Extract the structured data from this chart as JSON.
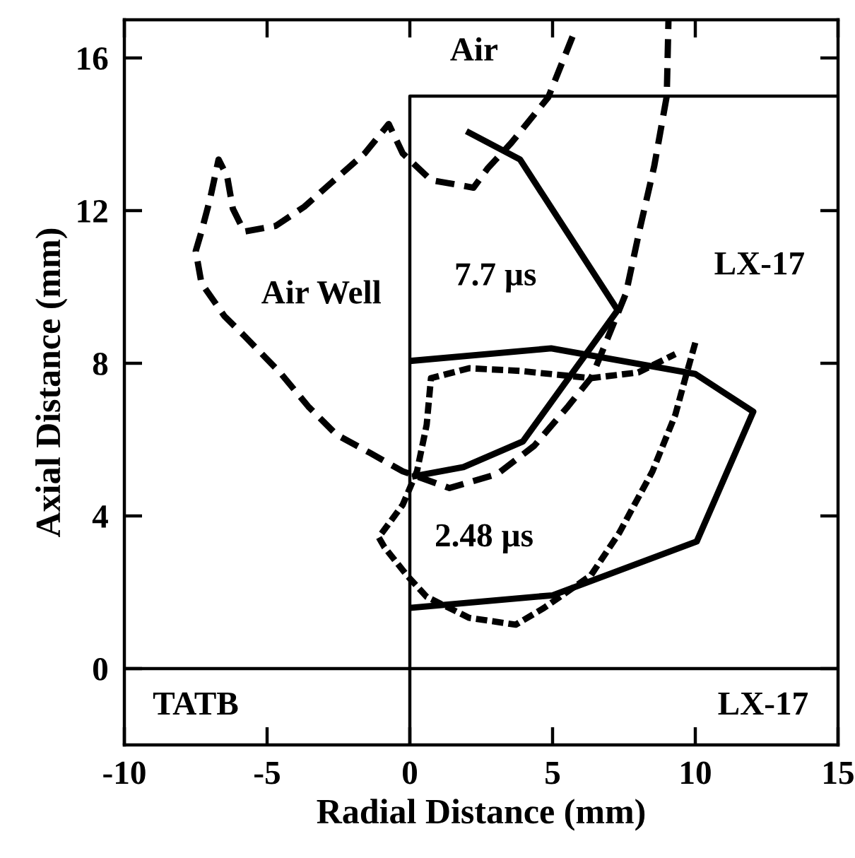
{
  "chart_data": {
    "type": "line",
    "xlabel": "Radial Distance (mm)",
    "ylabel": "Axial Distance (mm)",
    "xlim": [
      -10,
      15
    ],
    "ylim": [
      -2,
      17
    ],
    "xticks": [
      -10,
      -5,
      0,
      5,
      10,
      15
    ],
    "yticks": [
      0,
      4,
      8,
      12,
      16
    ],
    "grid": false,
    "legend": false,
    "marker": "none",
    "series": [
      {
        "type": "step",
        "color": "#000000",
        "line_style": "solid",
        "x": [
          0,
          0,
          15
        ],
        "values": [
          -2,
          15,
          15
        ]
      },
      {
        "color": "#000000",
        "line_style": "solid",
        "x": [
          0,
          4.95,
          10.0,
          12.03,
          10.05,
          5.0,
          0
        ],
        "values": [
          8.06,
          8.39,
          7.72,
          6.73,
          3.33,
          1.92,
          1.59
        ]
      },
      {
        "color": "#000000",
        "line_style": "solid",
        "x": [
          1.98,
          3.86,
          7.28,
          3.96,
          1.88,
          0.08
        ],
        "values": [
          14.08,
          13.34,
          9.39,
          5.95,
          5.28,
          5.03
        ]
      },
      {
        "color": "#000000",
        "line_style": "dashed",
        "x": [
          5.7,
          4.85,
          3.56,
          2.72,
          2.23,
          0.74,
          -0.25,
          -0.74,
          -1.58,
          -2.72,
          -3.7,
          -4.7,
          -5.8,
          -6.2,
          -6.4,
          -6.7,
          -7.0,
          -7.3,
          -7.5,
          -7.3,
          -6.5,
          -5.8,
          -4.55,
          -3.56,
          -2.57,
          -1.39,
          -0.25,
          1.39,
          3.07,
          4.36,
          5.54,
          6.34,
          6.44,
          7.57,
          8.07,
          8.56,
          9.0,
          9.06
        ],
        "values": [
          16.56,
          14.97,
          13.78,
          13.1,
          12.6,
          12.8,
          13.5,
          14.27,
          13.5,
          12.75,
          12.1,
          11.6,
          11.45,
          12.05,
          12.9,
          13.34,
          12.3,
          11.45,
          10.94,
          10.1,
          9.24,
          8.72,
          7.76,
          6.87,
          6.13,
          5.65,
          5.17,
          4.73,
          5.1,
          5.84,
          6.87,
          7.61,
          7.76,
          9.83,
          11.57,
          13.16,
          15.0,
          17.0
        ]
      },
      {
        "color": "#000000",
        "line_style": "dotted",
        "x": [
          10.0,
          9.65,
          9.3,
          8.5,
          7.33,
          6.34,
          4.7,
          3.71,
          2.08,
          0.59,
          -0.1,
          -0.89,
          -1.09,
          -0.25,
          0.25,
          0.59,
          0.74,
          2.08,
          3.86,
          6.34,
          8.0,
          9.3
        ],
        "values": [
          8.54,
          7.61,
          6.65,
          5.17,
          3.55,
          2.44,
          1.59,
          1.15,
          1.33,
          1.88,
          2.44,
          3.18,
          3.44,
          4.29,
          5.17,
          6.39,
          7.61,
          7.87,
          7.8,
          7.61,
          7.76,
          8.24
        ]
      }
    ],
    "ref_lines": [
      {
        "axis": "y",
        "value": 0,
        "color": "#000000",
        "line_style": "solid"
      }
    ],
    "annotations": [
      "Air",
      "Air Well",
      "7.7 µs",
      "LX-17",
      "2.48 µs",
      "TATB",
      "LX-17"
    ]
  }
}
